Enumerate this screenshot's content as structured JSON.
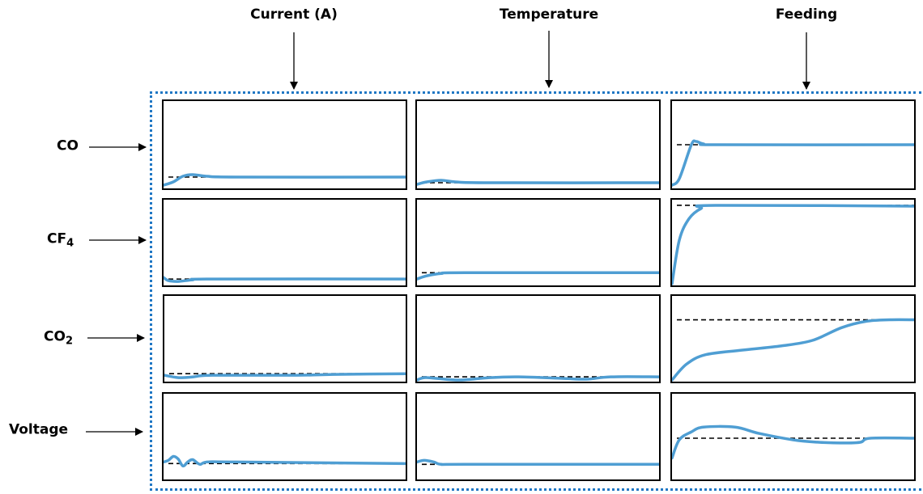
{
  "columns": [
    {
      "title": "Current (A)"
    },
    {
      "title": "Temperature"
    },
    {
      "title": "Feeding"
    }
  ],
  "rows": [
    {
      "label": "CO",
      "sub": ""
    },
    {
      "label": "CF",
      "sub": "4"
    },
    {
      "label": "CO",
      "sub": "2"
    },
    {
      "label": "Voltage",
      "sub": ""
    }
  ],
  "colors": {
    "response": "#4f9ed3",
    "setpoint": "#000000",
    "frame": "#1f77c4"
  },
  "chart_data": {
    "type": "line",
    "description_units": "normalized time 0-1 (x) and normalized response 0-1 (y)",
    "panels": [
      {
        "row": 0,
        "col": 0,
        "setpoint": 0.12,
        "response": [
          [
            0,
            0.02
          ],
          [
            0.04,
            0.06
          ],
          [
            0.08,
            0.13
          ],
          [
            0.12,
            0.15
          ],
          [
            0.18,
            0.13
          ],
          [
            0.3,
            0.12
          ],
          [
            1,
            0.12
          ]
        ]
      },
      {
        "row": 0,
        "col": 1,
        "setpoint": 0.05,
        "response": [
          [
            0,
            0.03
          ],
          [
            0.04,
            0.06
          ],
          [
            0.1,
            0.08
          ],
          [
            0.16,
            0.06
          ],
          [
            0.3,
            0.05
          ],
          [
            1,
            0.05
          ]
        ]
      },
      {
        "row": 0,
        "col": 2,
        "setpoint": 0.52,
        "response": [
          [
            0,
            0.02
          ],
          [
            0.03,
            0.1
          ],
          [
            0.08,
            0.52
          ],
          [
            0.1,
            0.56
          ],
          [
            0.13,
            0.53
          ],
          [
            0.2,
            0.52
          ],
          [
            1,
            0.52
          ]
        ]
      },
      {
        "row": 1,
        "col": 0,
        "setpoint": 0.06,
        "response": [
          [
            0,
            0.08
          ],
          [
            0.02,
            0.04
          ],
          [
            0.06,
            0.03
          ],
          [
            0.12,
            0.05
          ],
          [
            0.2,
            0.06
          ],
          [
            1,
            0.06
          ]
        ]
      },
      {
        "row": 1,
        "col": 1,
        "setpoint": 0.14,
        "response": [
          [
            0,
            0.06
          ],
          [
            0.04,
            0.1
          ],
          [
            0.1,
            0.13
          ],
          [
            0.2,
            0.14
          ],
          [
            1,
            0.14
          ]
        ]
      },
      {
        "row": 1,
        "col": 2,
        "setpoint": 0.99,
        "response": [
          [
            0,
            0.0
          ],
          [
            0.03,
            0.55
          ],
          [
            0.07,
            0.82
          ],
          [
            0.12,
            0.95
          ],
          [
            0.18,
            0.99
          ],
          [
            1,
            0.98
          ]
        ]
      },
      {
        "row": 2,
        "col": 0,
        "setpoint": 0.08,
        "response": [
          [
            0,
            0.06
          ],
          [
            0.06,
            0.03
          ],
          [
            0.12,
            0.04
          ],
          [
            0.2,
            0.06
          ],
          [
            0.55,
            0.06
          ],
          [
            0.7,
            0.07
          ],
          [
            1,
            0.08
          ]
        ]
      },
      {
        "row": 2,
        "col": 1,
        "setpoint": 0.04,
        "response": [
          [
            0,
            0.0
          ],
          [
            0.03,
            0.03
          ],
          [
            0.08,
            0.02
          ],
          [
            0.18,
            0.0
          ],
          [
            0.3,
            0.03
          ],
          [
            0.42,
            0.04
          ],
          [
            0.6,
            0.02
          ],
          [
            0.7,
            0.01
          ],
          [
            0.8,
            0.04
          ],
          [
            1,
            0.04
          ]
        ]
      },
      {
        "row": 2,
        "col": 2,
        "setpoint": 0.76,
        "response": [
          [
            0,
            0.0
          ],
          [
            0.06,
            0.2
          ],
          [
            0.14,
            0.32
          ],
          [
            0.3,
            0.38
          ],
          [
            0.45,
            0.43
          ],
          [
            0.58,
            0.5
          ],
          [
            0.7,
            0.66
          ],
          [
            0.8,
            0.74
          ],
          [
            0.9,
            0.76
          ],
          [
            1,
            0.76
          ]
        ]
      },
      {
        "row": 3,
        "col": 0,
        "setpoint": 0.18,
        "response": [
          [
            0,
            0.2
          ],
          [
            0.02,
            0.22
          ],
          [
            0.04,
            0.27
          ],
          [
            0.06,
            0.24
          ],
          [
            0.08,
            0.15
          ],
          [
            0.1,
            0.2
          ],
          [
            0.12,
            0.23
          ],
          [
            0.15,
            0.17
          ],
          [
            0.18,
            0.2
          ],
          [
            0.3,
            0.2
          ],
          [
            1,
            0.18
          ]
        ]
      },
      {
        "row": 3,
        "col": 1,
        "setpoint": 0.17,
        "response": [
          [
            0,
            0.2
          ],
          [
            0.03,
            0.22
          ],
          [
            0.07,
            0.2
          ],
          [
            0.1,
            0.17
          ],
          [
            0.2,
            0.17
          ],
          [
            1,
            0.17
          ]
        ]
      },
      {
        "row": 3,
        "col": 2,
        "setpoint": 0.5,
        "response": [
          [
            0,
            0.25
          ],
          [
            0.03,
            0.48
          ],
          [
            0.08,
            0.58
          ],
          [
            0.13,
            0.64
          ],
          [
            0.26,
            0.64
          ],
          [
            0.36,
            0.56
          ],
          [
            0.5,
            0.48
          ],
          [
            0.6,
            0.45
          ],
          [
            0.72,
            0.44
          ],
          [
            0.78,
            0.45
          ],
          [
            0.82,
            0.5
          ],
          [
            1,
            0.5
          ]
        ]
      }
    ]
  }
}
